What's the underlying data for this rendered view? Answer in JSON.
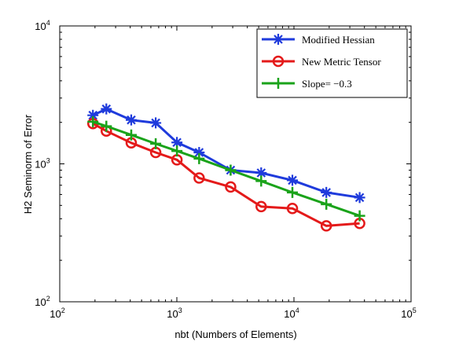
{
  "chart_data": {
    "type": "line",
    "title": "",
    "xlabel": "nbt (Numbers of Elements)",
    "ylabel": "H2 Seminorm of Error",
    "xscale": "log",
    "yscale": "log",
    "xlim": [
      100,
      100000
    ],
    "ylim": [
      100,
      10000
    ],
    "xticks": [
      {
        "base": "10",
        "exp": "2"
      },
      {
        "base": "10",
        "exp": "3"
      },
      {
        "base": "10",
        "exp": "4"
      },
      {
        "base": "10",
        "exp": "5"
      }
    ],
    "yticks": [
      {
        "base": "10",
        "exp": "2"
      },
      {
        "base": "10",
        "exp": "3"
      },
      {
        "base": "10",
        "exp": "4"
      }
    ],
    "grid": false,
    "legend_position": "top-right",
    "series": [
      {
        "name": "Modified Hessian",
        "color": "#1f3bdc",
        "marker": "asterisk",
        "x": [
          192,
          250,
          408,
          660,
          1002,
          1550,
          2880,
          5250,
          9700,
          18900,
          36400
        ],
        "y": [
          2250,
          2500,
          2080,
          1980,
          1430,
          1210,
          900,
          860,
          760,
          620,
          570
        ]
      },
      {
        "name": "New Metric Tensor",
        "color": "#e41a1a",
        "marker": "circle",
        "x": [
          192,
          250,
          408,
          660,
          1002,
          1550,
          2880,
          5250,
          9700,
          18900,
          36400
        ],
        "y": [
          1960,
          1730,
          1420,
          1210,
          1070,
          790,
          680,
          490,
          475,
          355,
          370
        ]
      },
      {
        "name": "Slope= −0.3",
        "color": "#1aa31a",
        "marker": "plus",
        "x": [
          192,
          250,
          408,
          660,
          1002,
          1550,
          2880,
          5250,
          9700,
          18900,
          36400
        ],
        "y": [
          2020,
          1875,
          1620,
          1400,
          1240,
          1090,
          900,
          750,
          620,
          510,
          420
        ]
      }
    ]
  }
}
